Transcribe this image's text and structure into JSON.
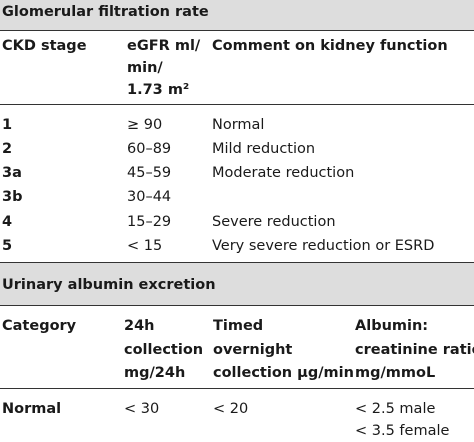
{
  "sections": [
    {
      "title": "Glomerular filtration rate",
      "header": [
        [
          "CKD stage"
        ],
        [
          "eGFR ml/",
          "min/",
          "1.73 m²"
        ],
        [
          "Comment on kidney function"
        ]
      ],
      "rows": [
        [
          "1",
          "≥ 90",
          "Normal"
        ],
        [
          "2",
          "60–89",
          "Mild reduction"
        ],
        [
          "3a",
          "45–59",
          "Moderate reduction"
        ],
        [
          "3b",
          "30–44"
        ],
        [
          "4",
          "15–29",
          "Severe reduction"
        ],
        [
          "5",
          "< 15",
          "Very severe reduction or ESRD"
        ]
      ]
    },
    {
      "title": "Urinary albumin excretion",
      "header": [
        [
          "Category"
        ],
        [
          "24h",
          "collection",
          "mg/24h"
        ],
        [
          "Timed",
          "overnight",
          "collection µg/min"
        ],
        [
          "Albumin:",
          "creatinine ratio",
          "mg/mmoL"
        ]
      ],
      "rows": [
        [
          [
            "Normal"
          ],
          [
            "< 30"
          ],
          [
            "< 20"
          ],
          [
            "< 2.5 male",
            "< 3.5 female"
          ]
        ]
      ]
    }
  ]
}
